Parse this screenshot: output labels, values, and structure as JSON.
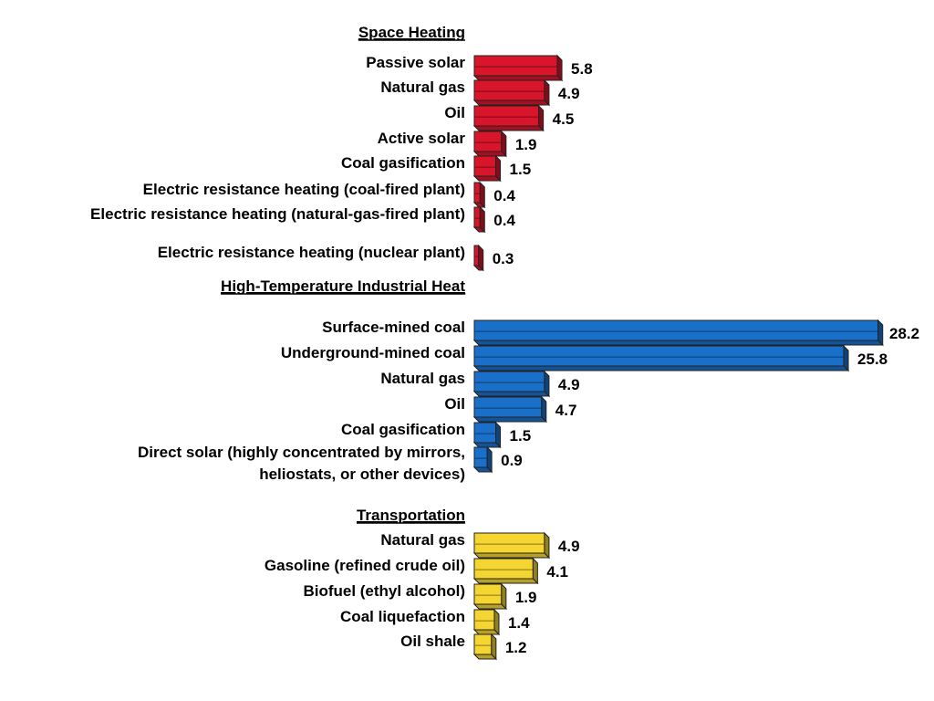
{
  "chart_data": {
    "type": "bar",
    "orientation": "horizontal",
    "groups": [
      {
        "title": "Space Heating",
        "color": "#d9152b",
        "items": [
          {
            "label": "Passive solar",
            "value": 5.8
          },
          {
            "label": "Natural gas",
            "value": 4.9
          },
          {
            "label": "Oil",
            "value": 4.5
          },
          {
            "label": "Active solar",
            "value": 1.9
          },
          {
            "label": "Coal gasification",
            "value": 1.5
          },
          {
            "label": "Electric resistance heating (coal-fired plant)",
            "value": 0.4
          },
          {
            "label": "Electric resistance heating (natural-gas-fired plant)",
            "value": 0.4
          },
          {
            "label": "Electric resistance heating (nuclear plant)",
            "value": 0.3
          }
        ]
      },
      {
        "title": "High-Temperature Industrial Heat",
        "color": "#1a6fc9",
        "items": [
          {
            "label": "Surface-mined coal",
            "value": 28.2
          },
          {
            "label": "Underground-mined coal",
            "value": 25.8
          },
          {
            "label": "Natural gas",
            "value": 4.9
          },
          {
            "label": "Oil",
            "value": 4.7
          },
          {
            "label": "Coal gasification",
            "value": 1.5
          },
          {
            "label": "Direct solar (highly concentrated by mirrors, heliostats, or other devices)",
            "value": 0.9
          }
        ]
      },
      {
        "title": "Transportation",
        "color": "#f4d531",
        "items": [
          {
            "label": "Natural gas",
            "value": 4.9
          },
          {
            "label": "Gasoline (refined crude oil)",
            "value": 4.1
          },
          {
            "label": "Biofuel (ethyl alcohol)",
            "value": 1.9
          },
          {
            "label": "Coal liquefaction",
            "value": 1.4
          },
          {
            "label": "Oil shale",
            "value": 1.2
          }
        ]
      }
    ],
    "grid": false,
    "legend": "none"
  }
}
